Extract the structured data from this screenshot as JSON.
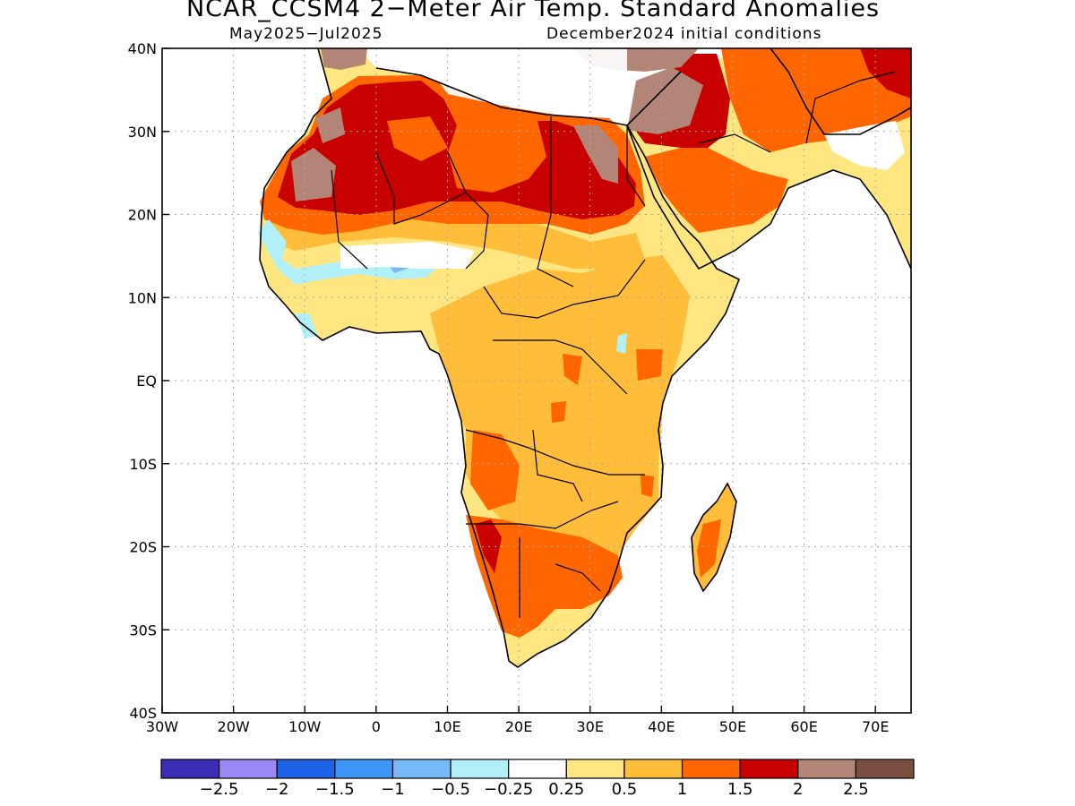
{
  "header": {
    "title": "NCAR_CCSM4 2−Meter Air Temp. Standard Anomalies",
    "period": "May2025−Jul2025",
    "init": "December2024 initial conditions"
  },
  "colors": {
    "land_warm_1": "#ffe680",
    "land_warm_2": "#ffbd3a",
    "land_warm_3": "#ff6600",
    "land_warm_4": "#c80000",
    "land_warm_5": "#b38577",
    "land_cool_1": "#b1f0f8",
    "land_cool_2": "#7ab6f7",
    "coast": "#000000",
    "grid": "#aaaaaa"
  },
  "map": {
    "lon_ticks": [
      "30W",
      "20W",
      "10W",
      "0",
      "10E",
      "20E",
      "30E",
      "40E",
      "50E",
      "60E",
      "70E"
    ],
    "lat_ticks": [
      "40N",
      "30N",
      "20N",
      "10N",
      "EQ",
      "10S",
      "20S",
      "30S",
      "40S"
    ],
    "lon_range": [
      -30,
      75
    ],
    "lat_range": [
      -40,
      40
    ]
  },
  "colorbar": {
    "colors": [
      "#3b2db5",
      "#9a88f5",
      "#1e62e6",
      "#3c96f5",
      "#78b9f7",
      "#b1f0f8",
      "#ffffff",
      "#ffe680",
      "#ffbd3a",
      "#ff6600",
      "#c80000",
      "#b38577",
      "#7a4e40"
    ],
    "labels": [
      "−2.5",
      "−2",
      "−1.5",
      "−1",
      "−0.5",
      "−0.25",
      "0.25",
      "0.5",
      "1",
      "1.5",
      "2",
      "2.5"
    ]
  }
}
